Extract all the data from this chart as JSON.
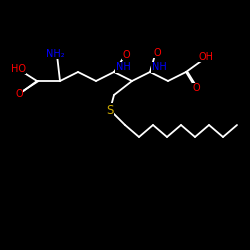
{
  "bg": "#000000",
  "wc": "#ffffff",
  "rc": "#ff0000",
  "bc": "#0000ff",
  "sc": "#ccaa00",
  "lw": 1.3,
  "fs": 7.0,
  "xlim": [
    0,
    250
  ],
  "ylim": [
    0,
    250
  ],
  "figsize": [
    2.5,
    2.5
  ],
  "dpi": 100,
  "note": "S-Nonylglutathione: zigzag backbone in upper portion, nonyl chain below-right"
}
